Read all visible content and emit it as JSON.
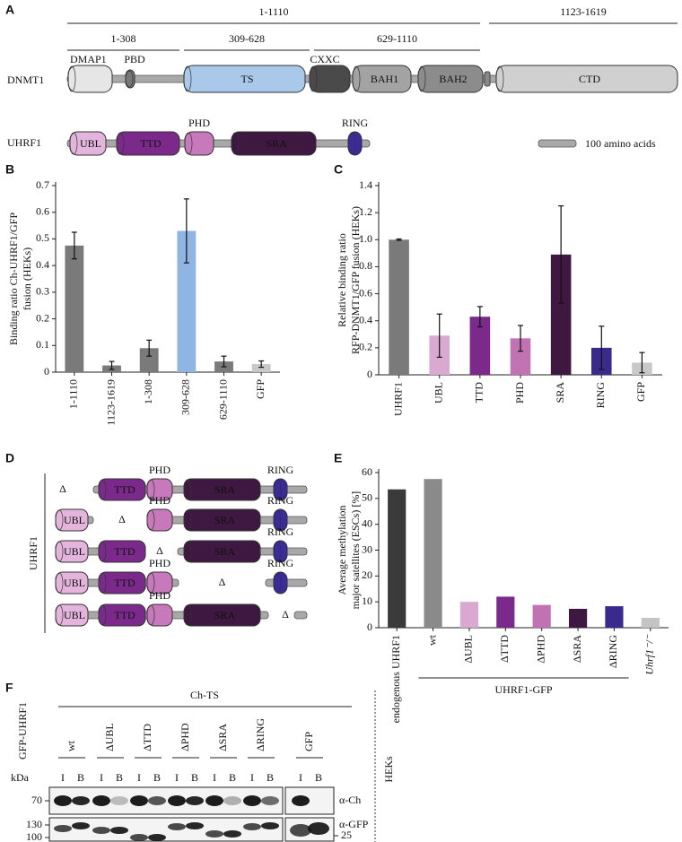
{
  "panel_a": {
    "label": "A",
    "ranges_top": [
      "1-1110",
      "1123-1619"
    ],
    "ranges_sub": [
      "1-308",
      "309-628",
      "629-1110"
    ],
    "dnmt1": {
      "name": "DNMT1",
      "domains": [
        "DMAP1",
        "PBD",
        "TS",
        "CXXC",
        "BAH1",
        "BAH2",
        "CTD"
      ]
    },
    "uhrf1": {
      "name": "UHRF1",
      "domains": [
        "UBL",
        "TTD",
        "PHD",
        "SRA",
        "RING"
      ]
    },
    "scale": "100 amino acids"
  },
  "chart_data": [
    {
      "type": "bar",
      "panel": "B",
      "ylabel": [
        "Binding ratio Ch-UHRF1/GFP",
        "fusion (HEKs)"
      ],
      "categories": [
        "1-1110",
        "1123-1619",
        "1-308",
        "309-628",
        "629-1110",
        "GFP"
      ],
      "values": [
        0.475,
        0.025,
        0.09,
        0.53,
        0.04,
        0.03
      ],
      "errors": [
        0.05,
        0.015,
        0.03,
        0.12,
        0.02,
        0.012
      ],
      "colors": [
        "#7a7a7a",
        "#7a7a7a",
        "#7a7a7a",
        "#8fb6e3",
        "#7a7a7a",
        "#c8c8c8"
      ],
      "ylim": [
        0,
        0.7
      ],
      "yticks": [
        0,
        0.1,
        0.2,
        0.3,
        0.4,
        0.5,
        0.6,
        0.7
      ]
    },
    {
      "type": "bar",
      "panel": "C",
      "ylabel": [
        "Relative binding ratio",
        "RFP-DNMT1/GFP fusion (HEKs)"
      ],
      "categories": [
        "UHRF1",
        "UBL",
        "TTD",
        "PHD",
        "SRA",
        "RING",
        "GFP"
      ],
      "values": [
        1.0,
        0.29,
        0.43,
        0.27,
        0.89,
        0.2,
        0.09
      ],
      "errors": [
        0.005,
        0.16,
        0.075,
        0.095,
        0.36,
        0.16,
        0.075
      ],
      "colors": [
        "#7a7a7a",
        "#d9a9d2",
        "#7b2a8b",
        "#c172b3",
        "#3e1840",
        "#3a2a8c",
        "#c8c8c8"
      ],
      "ylim": [
        0,
        1.4
      ],
      "yticks": [
        0,
        0.2,
        0.4,
        0.6,
        0.8,
        {
          "value": 1,
          "label": "1.0"
        },
        1.2,
        1.4
      ]
    },
    {
      "type": "bar",
      "panel": "E",
      "ylabel": [
        "Average methylation",
        "major satellites (ESCs) [%]"
      ],
      "categories": [
        "endogenous UHRF1",
        "wt",
        "ΔUBL",
        "ΔTTD",
        "ΔPHD",
        "ΔSRA",
        "ΔRING",
        "Uhrf1⁻/⁻"
      ],
      "values": [
        53.5,
        57.5,
        10,
        12,
        8.8,
        7.3,
        8.3,
        3.8
      ],
      "colors": [
        "#3a3a3a",
        "#8a8a8a",
        "#d9a9d2",
        "#7b2a8b",
        "#c172b3",
        "#3e1840",
        "#3a2a8c",
        "#c4c4c4"
      ],
      "ylim": [
        0,
        60
      ],
      "yticks": [
        0,
        10,
        20,
        30,
        40,
        50,
        60
      ],
      "group_label": "UHRF1-GFP"
    }
  ],
  "panel_d": {
    "label": "D",
    "protein": "UHRF1",
    "domains": [
      "UBL",
      "TTD",
      "PHD",
      "SRA",
      "RING"
    ],
    "rows": [
      "Δ",
      "Δ",
      "Δ",
      "Δ",
      "Δ"
    ]
  },
  "panel_f": {
    "label": "F",
    "bait": "Ch-TS",
    "construct": "GFP-UHRF1",
    "lanes": [
      "wt",
      "ΔUBL",
      "ΔTTD",
      "ΔPHD",
      "ΔSRA",
      "ΔRING",
      "GFP"
    ],
    "unit": "kDa",
    "fractions": [
      "I",
      "B"
    ],
    "markers": [
      70,
      130,
      100
    ],
    "gfp_marker": 25,
    "antibodies": [
      "α-Ch",
      "α-GFP"
    ],
    "cell_line": "HEKs"
  }
}
